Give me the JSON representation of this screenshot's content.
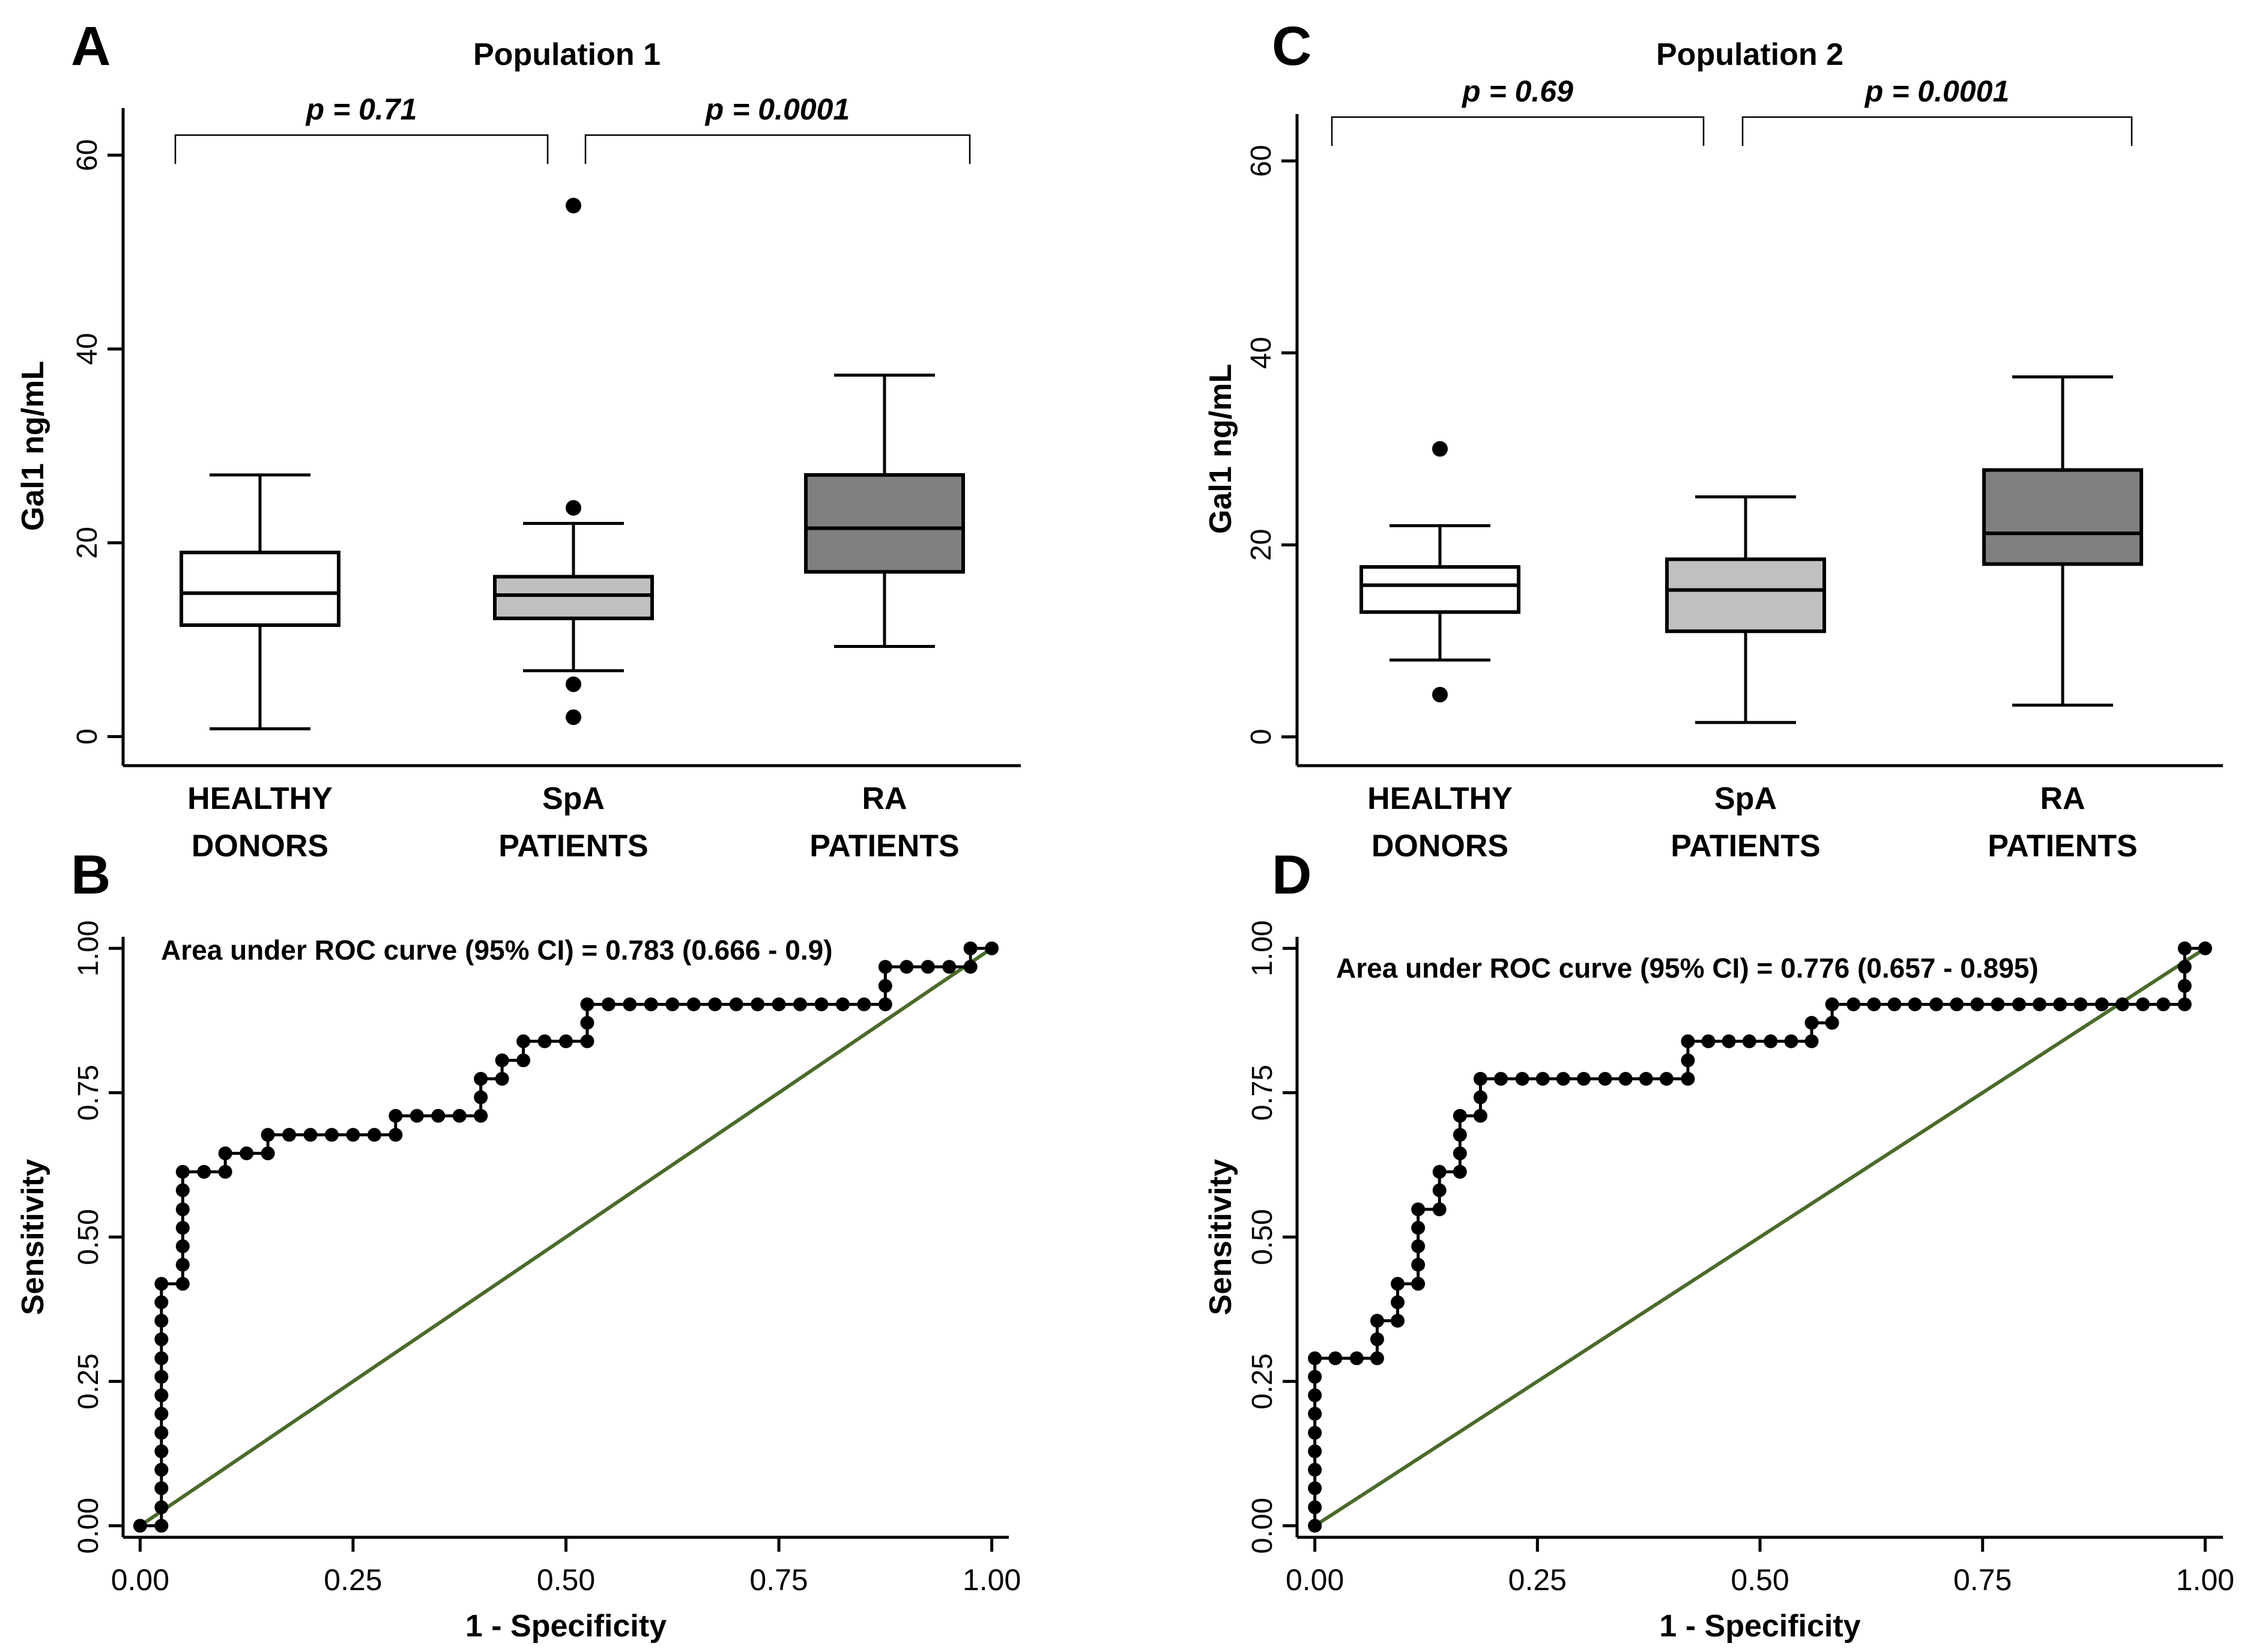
{
  "chart_data": [
    {
      "panel_label": "A",
      "type": "boxplot",
      "title": "Population 1",
      "ylabel": "Gal1 ng/mL",
      "xlabel": "",
      "ylim": [
        -3,
        63
      ],
      "yticks": [
        "0",
        "20",
        "40",
        "60"
      ],
      "categories": [
        [
          "HEALTHY",
          "DONORS"
        ],
        [
          "SpA",
          "PATIENTS"
        ],
        [
          "RA",
          "PATIENTS"
        ]
      ],
      "boxes": [
        {
          "name": "HEALTHY DONORS",
          "min": 0.8,
          "q1": 11.5,
          "median": 14.8,
          "q3": 19.0,
          "max": 27.0,
          "outliers": [],
          "color": "#ffffff"
        },
        {
          "name": "SpA PATIENTS",
          "min": 6.8,
          "q1": 12.2,
          "median": 14.6,
          "q3": 16.5,
          "max": 22.0,
          "outliers": [
            54.8,
            23.6,
            5.4,
            2.0
          ],
          "color": "#c0c0c0"
        },
        {
          "name": "RA PATIENTS",
          "min": 9.3,
          "q1": 17.0,
          "median": 21.5,
          "q3": 27.0,
          "max": 37.3,
          "outliers": [],
          "color": "#808080"
        }
      ],
      "comparisons": [
        {
          "label": "p = 0.71",
          "from": 0,
          "to": 1
        },
        {
          "label": "p = 0.0001",
          "from": 1,
          "to": 2
        }
      ]
    },
    {
      "panel_label": "C",
      "type": "boxplot",
      "title": "Population 2",
      "ylabel": "Gal1 ng/mL",
      "xlabel": "",
      "ylim": [
        -3,
        63
      ],
      "yticks": [
        "0",
        "20",
        "40",
        "60"
      ],
      "categories": [
        [
          "HEALTHY",
          "DONORS"
        ],
        [
          "SpA",
          "PATIENTS"
        ],
        [
          "RA",
          "PATIENTS"
        ]
      ],
      "boxes": [
        {
          "name": "HEALTHY DONORS",
          "min": 8.0,
          "q1": 13.0,
          "median": 15.8,
          "q3": 17.7,
          "max": 22.0,
          "outliers": [
            30.0,
            4.4
          ],
          "color": "#ffffff"
        },
        {
          "name": "SpA PATIENTS",
          "min": 1.5,
          "q1": 11.0,
          "median": 15.3,
          "q3": 18.5,
          "max": 25.0,
          "outliers": [],
          "color": "#c0c0c0"
        },
        {
          "name": "RA PATIENTS",
          "min": 3.3,
          "q1": 18.0,
          "median": 21.2,
          "q3": 27.8,
          "max": 37.5,
          "outliers": [],
          "color": "#808080"
        }
      ],
      "comparisons": [
        {
          "label": "p = 0.69",
          "from": 0,
          "to": 1
        },
        {
          "label": "p = 0.0001",
          "from": 1,
          "to": 2
        }
      ]
    },
    {
      "panel_label": "B",
      "type": "roc",
      "title": "",
      "annotation": "Area under ROC curve (95% CI) = 0.783 (0.666 - 0.9)",
      "xlabel": "1 - Specificity",
      "ylabel": "Sensitivity",
      "xlim": [
        -0.02,
        1.02
      ],
      "ylim": [
        -0.02,
        1.02
      ],
      "xticks": [
        "0.00",
        "0.25",
        "0.50",
        "0.75",
        "1.00"
      ],
      "yticks": [
        "0.00",
        "0.25",
        "0.50",
        "0.75",
        "1.00"
      ],
      "diagonal_color": "#4a6b2a",
      "curve_color": "#000000",
      "points": [
        [
          0,
          0
        ],
        [
          0.025,
          0
        ],
        [
          0.025,
          0.032
        ],
        [
          0.025,
          0.065
        ],
        [
          0.025,
          0.097
        ],
        [
          0.025,
          0.129
        ],
        [
          0.025,
          0.161
        ],
        [
          0.025,
          0.194
        ],
        [
          0.025,
          0.226
        ],
        [
          0.025,
          0.258
        ],
        [
          0.025,
          0.29
        ],
        [
          0.025,
          0.323
        ],
        [
          0.025,
          0.355
        ],
        [
          0.025,
          0.387
        ],
        [
          0.025,
          0.419
        ],
        [
          0.05,
          0.419
        ],
        [
          0.05,
          0.452
        ],
        [
          0.05,
          0.484
        ],
        [
          0.05,
          0.516
        ],
        [
          0.05,
          0.548
        ],
        [
          0.05,
          0.581
        ],
        [
          0.05,
          0.613
        ],
        [
          0.075,
          0.613
        ],
        [
          0.1,
          0.613
        ],
        [
          0.1,
          0.645
        ],
        [
          0.125,
          0.645
        ],
        [
          0.15,
          0.645
        ],
        [
          0.15,
          0.677
        ],
        [
          0.175,
          0.677
        ],
        [
          0.2,
          0.677
        ],
        [
          0.225,
          0.677
        ],
        [
          0.25,
          0.677
        ],
        [
          0.275,
          0.677
        ],
        [
          0.3,
          0.677
        ],
        [
          0.3,
          0.71
        ],
        [
          0.325,
          0.71
        ],
        [
          0.35,
          0.71
        ],
        [
          0.375,
          0.71
        ],
        [
          0.4,
          0.71
        ],
        [
          0.4,
          0.742
        ],
        [
          0.4,
          0.774
        ],
        [
          0.425,
          0.774
        ],
        [
          0.425,
          0.806
        ],
        [
          0.45,
          0.806
        ],
        [
          0.45,
          0.839
        ],
        [
          0.475,
          0.839
        ],
        [
          0.5,
          0.839
        ],
        [
          0.525,
          0.839
        ],
        [
          0.525,
          0.871
        ],
        [
          0.525,
          0.903
        ],
        [
          0.55,
          0.903
        ],
        [
          0.575,
          0.903
        ],
        [
          0.6,
          0.903
        ],
        [
          0.625,
          0.903
        ],
        [
          0.65,
          0.903
        ],
        [
          0.675,
          0.903
        ],
        [
          0.7,
          0.903
        ],
        [
          0.725,
          0.903
        ],
        [
          0.75,
          0.903
        ],
        [
          0.775,
          0.903
        ],
        [
          0.8,
          0.903
        ],
        [
          0.825,
          0.903
        ],
        [
          0.85,
          0.903
        ],
        [
          0.875,
          0.903
        ],
        [
          0.875,
          0.935
        ],
        [
          0.875,
          0.968
        ],
        [
          0.9,
          0.968
        ],
        [
          0.925,
          0.968
        ],
        [
          0.95,
          0.968
        ],
        [
          0.975,
          0.968
        ],
        [
          0.975,
          1.0
        ],
        [
          1.0,
          1.0
        ]
      ]
    },
    {
      "panel_label": "D",
      "type": "roc",
      "title": "",
      "annotation": "Area under ROC curve (95% CI) = 0.776 (0.657 - 0.895)",
      "xlabel": "1 - Specificity",
      "ylabel": "Sensitivity",
      "xlim": [
        -0.02,
        1.02
      ],
      "ylim": [
        -0.02,
        1.02
      ],
      "xticks": [
        "0.00",
        "0.25",
        "0.50",
        "0.75",
        "1.00"
      ],
      "yticks": [
        "0.00",
        "0.25",
        "0.50",
        "0.75",
        "1.00"
      ],
      "diagonal_color": "#4a6b2a",
      "curve_color": "#000000",
      "points": [
        [
          0,
          0
        ],
        [
          0,
          0.032
        ],
        [
          0,
          0.065
        ],
        [
          0,
          0.097
        ],
        [
          0,
          0.129
        ],
        [
          0,
          0.161
        ],
        [
          0,
          0.194
        ],
        [
          0,
          0.226
        ],
        [
          0,
          0.258
        ],
        [
          0,
          0.29
        ],
        [
          0.023,
          0.29
        ],
        [
          0.047,
          0.29
        ],
        [
          0.07,
          0.29
        ],
        [
          0.07,
          0.323
        ],
        [
          0.07,
          0.355
        ],
        [
          0.093,
          0.355
        ],
        [
          0.093,
          0.387
        ],
        [
          0.093,
          0.419
        ],
        [
          0.116,
          0.419
        ],
        [
          0.116,
          0.452
        ],
        [
          0.116,
          0.484
        ],
        [
          0.116,
          0.516
        ],
        [
          0.116,
          0.548
        ],
        [
          0.14,
          0.548
        ],
        [
          0.14,
          0.581
        ],
        [
          0.14,
          0.613
        ],
        [
          0.163,
          0.613
        ],
        [
          0.163,
          0.645
        ],
        [
          0.163,
          0.677
        ],
        [
          0.163,
          0.71
        ],
        [
          0.186,
          0.71
        ],
        [
          0.186,
          0.742
        ],
        [
          0.186,
          0.774
        ],
        [
          0.209,
          0.774
        ],
        [
          0.233,
          0.774
        ],
        [
          0.256,
          0.774
        ],
        [
          0.279,
          0.774
        ],
        [
          0.302,
          0.774
        ],
        [
          0.326,
          0.774
        ],
        [
          0.349,
          0.774
        ],
        [
          0.372,
          0.774
        ],
        [
          0.395,
          0.774
        ],
        [
          0.419,
          0.774
        ],
        [
          0.419,
          0.806
        ],
        [
          0.419,
          0.839
        ],
        [
          0.442,
          0.839
        ],
        [
          0.465,
          0.839
        ],
        [
          0.488,
          0.839
        ],
        [
          0.512,
          0.839
        ],
        [
          0.535,
          0.839
        ],
        [
          0.558,
          0.839
        ],
        [
          0.558,
          0.871
        ],
        [
          0.581,
          0.871
        ],
        [
          0.581,
          0.903
        ],
        [
          0.605,
          0.903
        ],
        [
          0.628,
          0.903
        ],
        [
          0.651,
          0.903
        ],
        [
          0.674,
          0.903
        ],
        [
          0.698,
          0.903
        ],
        [
          0.721,
          0.903
        ],
        [
          0.744,
          0.903
        ],
        [
          0.767,
          0.903
        ],
        [
          0.791,
          0.903
        ],
        [
          0.814,
          0.903
        ],
        [
          0.837,
          0.903
        ],
        [
          0.86,
          0.903
        ],
        [
          0.884,
          0.903
        ],
        [
          0.907,
          0.903
        ],
        [
          0.93,
          0.903
        ],
        [
          0.953,
          0.903
        ],
        [
          0.977,
          0.903
        ],
        [
          0.977,
          0.935
        ],
        [
          0.977,
          0.968
        ],
        [
          0.977,
          1.0
        ],
        [
          1.0,
          1.0
        ]
      ]
    }
  ]
}
